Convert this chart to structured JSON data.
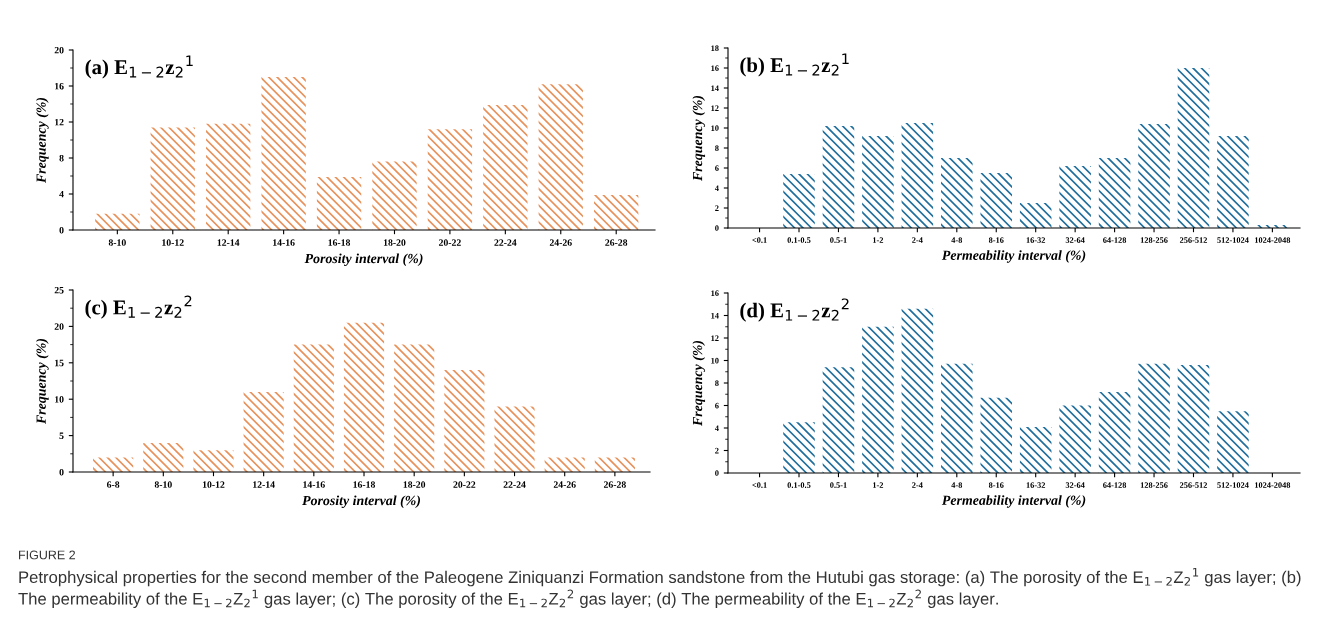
{
  "chart_data": [
    {
      "type": "bar",
      "title": "(a) E$_{1−2}$z$_{2}$$^{1}$",
      "xlabel": "Porosity interval (%)",
      "ylabel": "Frequency (%)",
      "categories": [
        "8-10",
        "10-12",
        "12-14",
        "14-16",
        "16-18",
        "18-20",
        "20-22",
        "22-24",
        "24-26",
        "26-28"
      ],
      "values": [
        1.8,
        11.4,
        11.8,
        17,
        5.9,
        7.6,
        11.2,
        13.9,
        16.2,
        3.9
      ],
      "color": "#e8915a",
      "ylim": [
        0,
        20
      ],
      "yticks": [
        0,
        4,
        8,
        12,
        16,
        20
      ],
      "grid": false,
      "legend": false,
      "annotations": [
        "FIGURE 2",
        "Petrophysical properties for the second member of the Paleogene Ziniquanzi Formation sandstone from the Hutubi gas storage: (a) The porosity of the E$_{1−2}$Z$_{2}$$^{1}$ gas layer; (b) The permeability of the E$_{1−2}$Z$_{2}$$^{1}$ gas layer; (c) The porosity of the E$_{1−2}$Z$_{2}$$^{2}$ gas layer; (d) The permeability of the E$_{1−2}$Z$_{2}$$^{2}$ gas layer."
      ]
    },
    {
      "type": "bar",
      "title": "(b) E$_{1−2}$z$_{2}$$^{1}$",
      "xlabel": "Permeability interval (%)",
      "ylabel": "Frequency (%)",
      "categories": [
        "<0.1",
        "0.1-0.5",
        "0.5-1",
        "1-2",
        "2-4",
        "4-8",
        "8-16",
        "16-32",
        "32-64",
        "64-128",
        "128-256",
        "256-512",
        "512-1024",
        "1024-2048"
      ],
      "values": [
        0,
        5.4,
        10.2,
        9.2,
        10.5,
        7,
        5.5,
        2.5,
        6.2,
        7,
        10.4,
        16,
        9.2,
        0.3
      ],
      "color": "#1f6e9c",
      "ylim": [
        0,
        18
      ],
      "yticks": [
        0,
        2,
        4,
        6,
        8,
        10,
        12,
        14,
        16,
        18
      ],
      "grid": false,
      "legend": false
    },
    {
      "type": "bar",
      "title": "(c) E$_{1−2}$z$_{2}$$^{2}$",
      "xlabel": "Porosity interval (%)",
      "ylabel": "Frequency (%)",
      "categories": [
        "6-8",
        "8-10",
        "10-12",
        "12-14",
        "14-16",
        "16-18",
        "18-20",
        "20-22",
        "22-24",
        "24-26",
        "26-28"
      ],
      "values": [
        2,
        4,
        3,
        11,
        17.5,
        20.5,
        17.5,
        14,
        9,
        2,
        2
      ],
      "color": "#e8915a",
      "ylim": [
        0,
        25
      ],
      "yticks": [
        0,
        5,
        10,
        15,
        20,
        25
      ],
      "grid": false,
      "legend": false
    },
    {
      "type": "bar",
      "title": "(d) E$_{1−2}$z$_{2}$$^{2}$",
      "xlabel": "Permeability interval (%)",
      "ylabel": "Frequency (%)",
      "categories": [
        "<0.1",
        "0.1-0.5",
        "0.5-1",
        "1-2",
        "2-4",
        "4-8",
        "8-16",
        "16-32",
        "32-64",
        "64-128",
        "128-256",
        "256-512",
        "512-1024",
        "1024-2048"
      ],
      "values": [
        0,
        4.5,
        9.4,
        13,
        14.6,
        9.7,
        6.7,
        4.1,
        6,
        7.2,
        9.7,
        9.6,
        5.5,
        0
      ],
      "color": "#1f6e9c",
      "ylim": [
        0,
        16
      ],
      "yticks": [
        0,
        2,
        4,
        6,
        8,
        10,
        12,
        14,
        16
      ],
      "grid": false,
      "legend": false
    }
  ]
}
